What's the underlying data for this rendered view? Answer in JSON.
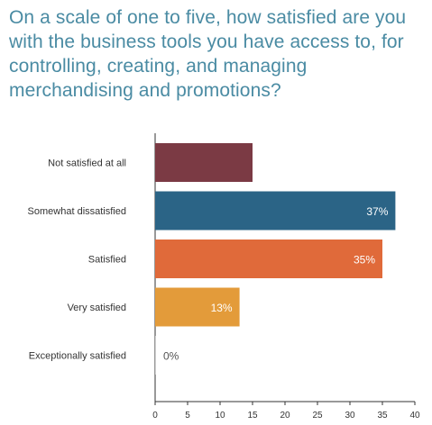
{
  "chart_data": {
    "type": "bar",
    "orientation": "horizontal",
    "title": "On a scale of one to five, how satisfied are you with the business tools you have access to, for controlling, creating, and managing merchandising and promotions?",
    "categories": [
      "Not satisfied at all",
      "Somewhat dissatisfied",
      "Satisfied",
      "Very satisfied",
      "Exceptionally satisfied"
    ],
    "values": [
      15,
      37,
      35,
      13,
      0
    ],
    "data_labels": [
      "",
      "37%",
      "35%",
      "13%",
      "0%"
    ],
    "colors": [
      "#7b3a44",
      "#2b6486",
      "#e06a3a",
      "#e39b3a",
      "#cfcfcf"
    ],
    "label_colors": [
      "#ffffff",
      "#ffffff",
      "#ffffff",
      "#ffffff",
      "#555555"
    ],
    "xlim": [
      0,
      40
    ],
    "xticks": [
      "0",
      "5",
      "10",
      "15",
      "20",
      "25",
      "30",
      "35",
      "40"
    ],
    "grid": false
  }
}
